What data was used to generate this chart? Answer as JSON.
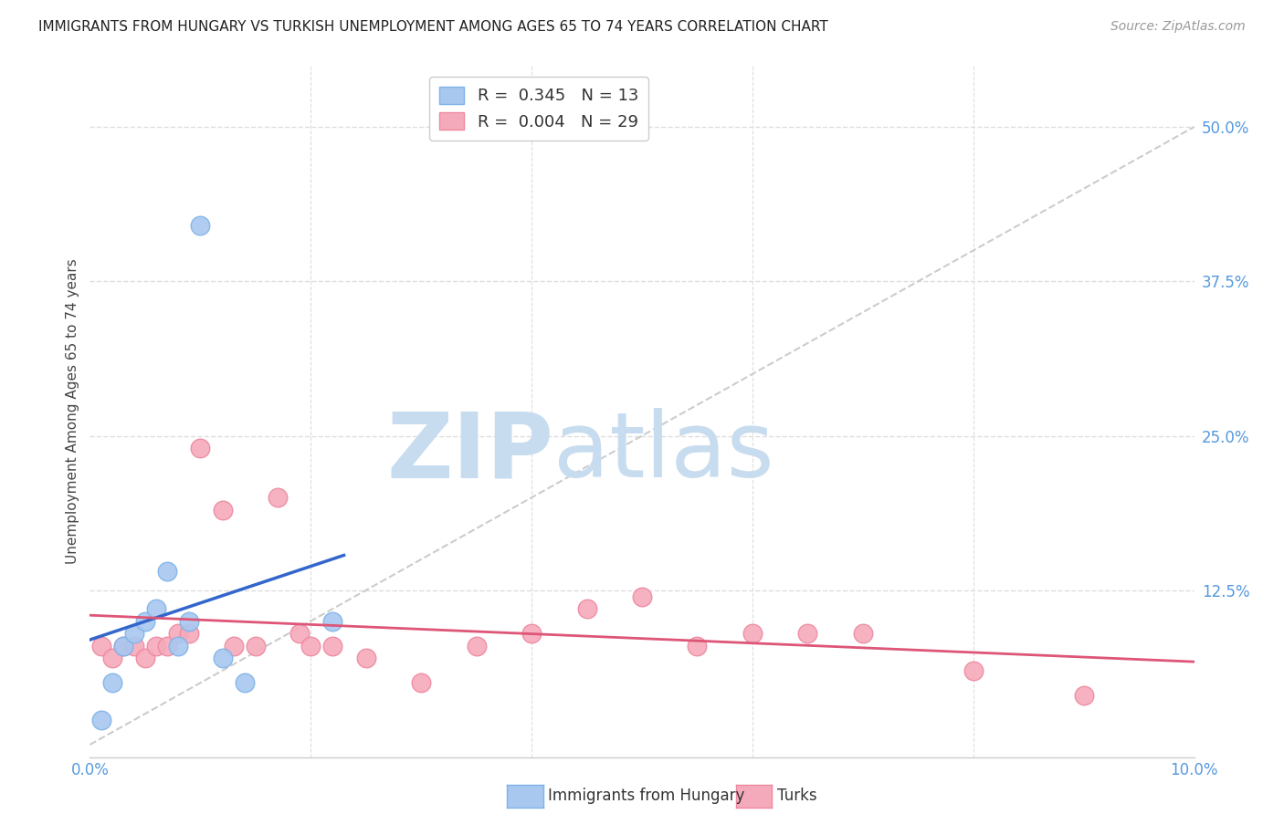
{
  "title": "IMMIGRANTS FROM HUNGARY VS TURKISH UNEMPLOYMENT AMONG AGES 65 TO 74 YEARS CORRELATION CHART",
  "source": "Source: ZipAtlas.com",
  "ylabel": "Unemployment Among Ages 65 to 74 years",
  "xlim": [
    0.0,
    0.1
  ],
  "ylim": [
    -0.01,
    0.55
  ],
  "hungary_R": 0.345,
  "hungary_N": 13,
  "turks_R": 0.004,
  "turks_N": 29,
  "hungary_color": "#A8C8F0",
  "turks_color": "#F5AABB",
  "hungary_edge_color": "#7EB3E8",
  "turks_edge_color": "#EE88A0",
  "hungary_trend_color": "#3366CC",
  "turks_trend_color": "#DD5577",
  "diag_line_color": "#CCCCCC",
  "watermark_zip_color": "#C8DCEF",
  "watermark_atlas_color": "#C8DCEF",
  "right_tick_color": "#5599DD",
  "x_tick_color": "#5599DD",
  "background_color": "#FFFFFF",
  "grid_color": "#DDDDDD",
  "hungary_x": [
    0.001,
    0.002,
    0.003,
    0.004,
    0.005,
    0.006,
    0.007,
    0.008,
    0.009,
    0.01,
    0.012,
    0.014,
    0.022
  ],
  "hungary_y": [
    0.02,
    0.05,
    0.08,
    0.09,
    0.1,
    0.11,
    0.14,
    0.08,
    0.1,
    0.42,
    0.07,
    0.05,
    0.1
  ],
  "turks_x": [
    0.001,
    0.002,
    0.003,
    0.004,
    0.005,
    0.006,
    0.007,
    0.008,
    0.009,
    0.01,
    0.012,
    0.013,
    0.015,
    0.017,
    0.019,
    0.02,
    0.022,
    0.025,
    0.03,
    0.035,
    0.04,
    0.045,
    0.05,
    0.055,
    0.06,
    0.065,
    0.07,
    0.08,
    0.09
  ],
  "turks_y": [
    0.08,
    0.07,
    0.08,
    0.08,
    0.07,
    0.08,
    0.08,
    0.09,
    0.09,
    0.24,
    0.19,
    0.08,
    0.08,
    0.2,
    0.09,
    0.08,
    0.08,
    0.07,
    0.05,
    0.08,
    0.09,
    0.11,
    0.12,
    0.08,
    0.09,
    0.09,
    0.09,
    0.06,
    0.04
  ],
  "hungary_trend_x": [
    0.001,
    0.023
  ],
  "turks_trend_x": [
    0.0,
    0.1
  ]
}
